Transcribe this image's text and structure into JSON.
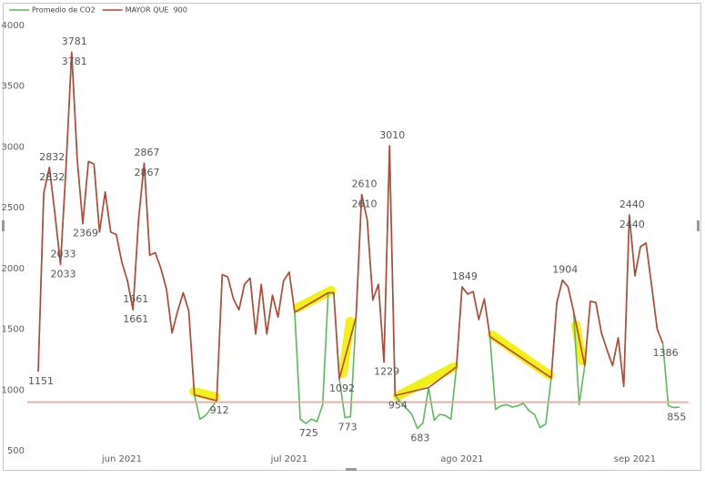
{
  "chart_data": {
    "type": "line",
    "categories": [
      null,
      null,
      null,
      null,
      null,
      null,
      null,
      null,
      null,
      null,
      null,
      null,
      null,
      null,
      null,
      "jun 2021",
      null,
      null,
      null,
      null,
      null,
      null,
      null,
      null,
      null,
      null,
      null,
      null,
      null,
      null,
      null,
      null,
      null,
      null,
      null,
      null,
      null,
      null,
      null,
      null,
      null,
      null,
      null,
      null,
      null,
      "jul 2021",
      null,
      null,
      null,
      null,
      null,
      null,
      null,
      null,
      null,
      null,
      null,
      null,
      null,
      null,
      null,
      null,
      null,
      null,
      null,
      null,
      null,
      null,
      null,
      null,
      null,
      null,
      null,
      null,
      null,
      null,
      "ago 2021",
      null,
      null,
      null,
      null,
      null,
      null,
      null,
      null,
      null,
      null,
      null,
      null,
      null,
      null,
      null,
      null,
      null,
      null,
      null,
      null,
      null,
      null,
      null,
      null,
      null,
      null,
      null,
      null,
      null,
      null,
      "sep 2021",
      null,
      null,
      null,
      null,
      null,
      null,
      null,
      null
    ],
    "series": [
      {
        "name": "Promedio de CO2",
        "color": "#5cb85c",
        "label_position": "below",
        "values": [
          1151,
          2620,
          2832,
          2450,
          2033,
          2850,
          3781,
          2900,
          2369,
          2880,
          2860,
          2300,
          2630,
          2300,
          2280,
          2050,
          1900,
          1661,
          2400,
          2867,
          2110,
          2130,
          2000,
          1830,
          1470,
          1650,
          1800,
          1650,
          960,
          760,
          790,
          850,
          912,
          1950,
          1930,
          1750,
          1660,
          1870,
          1920,
          1460,
          1870,
          1460,
          1780,
          1600,
          1900,
          1970,
          1640,
          760,
          725,
          760,
          740,
          880,
          1800,
          1800,
          1092,
          773,
          780,
          1600,
          2610,
          2400,
          1740,
          1870,
          1229,
          3010,
          954,
          900,
          850,
          800,
          683,
          730,
          1020,
          750,
          800,
          790,
          760,
          1190,
          1849,
          1790,
          1810,
          1580,
          1750,
          1440,
          840,
          870,
          880,
          860,
          870,
          890,
          830,
          800,
          690,
          720,
          1100,
          1720,
          1904,
          1850,
          1650,
          880,
          1200,
          1730,
          1720,
          1470,
          1330,
          1200,
          1430,
          1030,
          2440,
          1940,
          2180,
          2210,
          1860,
          1500,
          1386,
          870,
          855,
          860
        ],
        "value_labels": [
          "1151",
          null,
          "2832",
          null,
          "2033",
          null,
          "3781",
          null,
          "2369",
          null,
          null,
          null,
          null,
          null,
          null,
          null,
          null,
          "1661",
          null,
          "2867",
          null,
          null,
          null,
          null,
          null,
          null,
          null,
          null,
          null,
          null,
          null,
          null,
          "912",
          null,
          null,
          null,
          null,
          null,
          null,
          null,
          null,
          null,
          null,
          null,
          null,
          null,
          null,
          null,
          "725",
          null,
          null,
          null,
          null,
          null,
          "1092",
          "773",
          null,
          null,
          "2610",
          null,
          null,
          null,
          "1229",
          null,
          "954",
          null,
          null,
          null,
          "683",
          null,
          null,
          null,
          null,
          null,
          null,
          null,
          null,
          null,
          null,
          null,
          null,
          null,
          null,
          null,
          null,
          null,
          null,
          null,
          null,
          null,
          null,
          null,
          null,
          null,
          null,
          null,
          null,
          null,
          null,
          null,
          null,
          null,
          null,
          null,
          null,
          null,
          "2440",
          null,
          null,
          null,
          null,
          null,
          "1386",
          null,
          "855",
          null
        ]
      },
      {
        "name": "MAYOR QUE  900",
        "color": "#b5473a",
        "label_position": "above",
        "span_gaps": true,
        "values": [
          1151,
          2620,
          2832,
          2450,
          2033,
          2850,
          3781,
          2900,
          2369,
          2880,
          2860,
          2300,
          2630,
          2300,
          2280,
          2050,
          1900,
          1661,
          2400,
          2867,
          2110,
          2130,
          2000,
          1830,
          1470,
          1650,
          1800,
          1650,
          960,
          null,
          null,
          null,
          912,
          1950,
          1930,
          1750,
          1660,
          1870,
          1920,
          1460,
          1870,
          1460,
          1780,
          1600,
          1900,
          1970,
          1640,
          null,
          null,
          null,
          null,
          null,
          1800,
          1800,
          1092,
          null,
          null,
          1600,
          2610,
          2400,
          1740,
          1870,
          1229,
          3010,
          954,
          null,
          null,
          null,
          null,
          null,
          1020,
          null,
          null,
          null,
          null,
          1190,
          1849,
          1790,
          1810,
          1580,
          1750,
          1440,
          null,
          null,
          null,
          null,
          null,
          null,
          null,
          null,
          null,
          null,
          1100,
          1720,
          1904,
          1850,
          1650,
          null,
          1200,
          1730,
          1720,
          1470,
          1330,
          1200,
          1430,
          1030,
          2440,
          1940,
          2180,
          2210,
          1860,
          1500,
          1386,
          null,
          null,
          null
        ],
        "value_labels": [
          null,
          null,
          "2832",
          null,
          "2033",
          null,
          "3781",
          null,
          null,
          null,
          null,
          null,
          null,
          null,
          null,
          null,
          null,
          "1661",
          null,
          "2867",
          null,
          null,
          null,
          null,
          null,
          null,
          null,
          null,
          null,
          null,
          null,
          null,
          null,
          null,
          null,
          null,
          null,
          null,
          null,
          null,
          null,
          null,
          null,
          null,
          null,
          null,
          null,
          null,
          null,
          null,
          null,
          null,
          null,
          null,
          null,
          null,
          null,
          null,
          "2610",
          null,
          null,
          null,
          null,
          "3010",
          null,
          null,
          null,
          null,
          null,
          null,
          null,
          null,
          null,
          null,
          null,
          null,
          "1849",
          null,
          null,
          null,
          null,
          null,
          null,
          null,
          null,
          null,
          null,
          null,
          null,
          null,
          null,
          null,
          null,
          null,
          "1904",
          null,
          null,
          null,
          null,
          null,
          null,
          null,
          null,
          null,
          null,
          null,
          "2440",
          null,
          null,
          null,
          null,
          null,
          null,
          null,
          null,
          null
        ]
      }
    ],
    "reference_line": {
      "value": 900,
      "color": "#e8a49a"
    },
    "ylim": [
      500,
      4000
    ],
    "yticks": [
      500,
      1000,
      1500,
      2000,
      2500,
      3000,
      3500,
      4000
    ],
    "grid": false,
    "legend": "top-left"
  }
}
